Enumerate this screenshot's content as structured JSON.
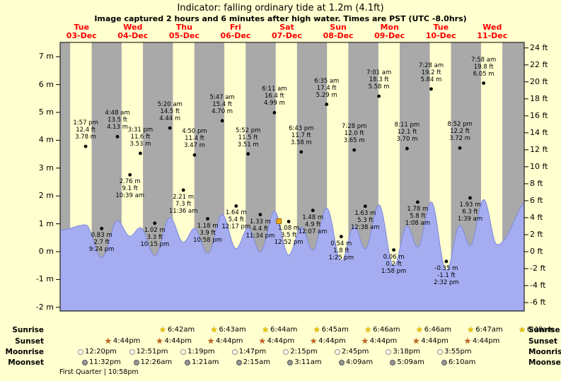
{
  "header": {
    "title": "Indicator: falling  ordinary tide at 1.2m (4.1ft)",
    "subtitle": "Image captured 2 hours and 6 minutes after high water. Times are PST (UTC -8.0hrs)"
  },
  "colors": {
    "background": "#ffffcf",
    "day_band": "#ffffcf",
    "night_band": "#a9a9a9",
    "tide_fill": "#a5adf0",
    "tide_stroke": "#7d88e0",
    "axis": "#000000",
    "day_label": "#ff0000",
    "indicator": "#f5a800",
    "sunrise_star": "#edc500",
    "sunset_star": "#c86820",
    "moonrise_circle": "#fffde6",
    "moonset_circle": "#989898"
  },
  "chart_data": {
    "type": "area",
    "title": "Indicator: falling ordinary tide at 1.2m (4.1ft)",
    "ylabel_left_unit": "m",
    "ylabel_right_unit": "ft",
    "grid": false,
    "days": [
      {
        "dow": "Tue",
        "date": "03-Dec"
      },
      {
        "dow": "Wed",
        "date": "04-Dec"
      },
      {
        "dow": "Thu",
        "date": "05-Dec"
      },
      {
        "dow": "Fri",
        "date": "06-Dec"
      },
      {
        "dow": "Sat",
        "date": "07-Dec"
      },
      {
        "dow": "Sun",
        "date": "08-Dec"
      },
      {
        "dow": "Mon",
        "date": "09-Dec"
      },
      {
        "dow": "Tue",
        "date": "10-Dec"
      },
      {
        "dow": "Wed",
        "date": "11-Dec"
      }
    ],
    "y_left_labels": [
      "7 m",
      "6 m",
      "5 m",
      "4 m",
      "3 m",
      "2 m",
      "1 m",
      "0 m",
      "-1 m",
      "-2 m"
    ],
    "y_right_labels": [
      "24 ft",
      "22 ft",
      "20 ft",
      "18 ft",
      "16 ft",
      "14 ft",
      "12 ft",
      "10 ft",
      "8 ft",
      "6 ft",
      "4 ft",
      "2 ft",
      "0 ft",
      "-2 ft",
      "-4 ft",
      "-6 ft"
    ],
    "tide_events": [
      {
        "date": "03-Dec",
        "type": "high",
        "labels": [
          "1:57 pm",
          "12.4 ft",
          "3.78 m"
        ]
      },
      {
        "date": "03-Dec",
        "type": "low",
        "labels": [
          "0.83 m",
          "2.7 ft",
          "9:24 pm"
        ]
      },
      {
        "date": "04-Dec",
        "type": "high",
        "labels": [
          "4:48 am",
          "13.5 ft",
          "4.13 m"
        ]
      },
      {
        "date": "04-Dec",
        "type": "low",
        "labels": [
          "2.76 m",
          "9.1 ft",
          "10:39 am"
        ]
      },
      {
        "date": "04-Dec",
        "type": "high",
        "labels": [
          "3:31 pm",
          "11.6 ft",
          "3.53 m"
        ]
      },
      {
        "date": "04-Dec",
        "type": "low",
        "labels": [
          "1.02 m",
          "3.3 ft",
          "10:15 pm"
        ]
      },
      {
        "date": "05-Dec",
        "type": "high",
        "labels": [
          "5:20 am",
          "14.5 ft",
          "4.44 m"
        ]
      },
      {
        "date": "05-Dec",
        "type": "low",
        "labels": [
          "2.21 m",
          "7.3 ft",
          "11:36 am"
        ]
      },
      {
        "date": "05-Dec",
        "type": "high",
        "labels": [
          "4:50 pm",
          "11.4 ft",
          "3.47 m"
        ]
      },
      {
        "date": "05-Dec",
        "type": "low",
        "labels": [
          "1.18 m",
          "3.9 ft",
          "10:58 pm"
        ]
      },
      {
        "date": "06-Dec",
        "type": "high",
        "labels": [
          "5:47 am",
          "15.4 ft",
          "4.70 m"
        ]
      },
      {
        "date": "06-Dec",
        "type": "low",
        "labels": [
          "1.64 m",
          "5.4 ft",
          "12:17 pm"
        ]
      },
      {
        "date": "06-Dec",
        "type": "high",
        "labels": [
          "5:52 pm",
          "11.5 ft",
          "3.51 m"
        ]
      },
      {
        "date": "06-Dec",
        "type": "low",
        "labels": [
          "1.33 m",
          "4.4 ft",
          "11:34 pm"
        ]
      },
      {
        "date": "07-Dec",
        "type": "high",
        "labels": [
          "6:11 am",
          "16.4 ft",
          "4.99 m"
        ]
      },
      {
        "date": "07-Dec",
        "type": "low",
        "labels": [
          "1.08 m",
          "3.5 ft",
          "12:52 pm"
        ]
      },
      {
        "date": "07-Dec",
        "type": "high",
        "labels": [
          "6:43 pm",
          "11.7 ft",
          "3.58 m"
        ]
      },
      {
        "date": "08-Dec",
        "type": "low",
        "labels": [
          "1.48 m",
          "4.9 ft",
          "12:07 am"
        ]
      },
      {
        "date": "08-Dec",
        "type": "high",
        "labels": [
          "6:35 am",
          "17.4 ft",
          "5.29 m"
        ]
      },
      {
        "date": "08-Dec",
        "type": "low",
        "labels": [
          "0.54 m",
          "1.8 ft",
          "1:25 pm"
        ]
      },
      {
        "date": "08-Dec",
        "type": "high",
        "labels": [
          "7:28 pm",
          "12.0 ft",
          "3.65 m"
        ]
      },
      {
        "date": "09-Dec",
        "type": "low",
        "labels": [
          "1.63 m",
          "5.3 ft",
          "12:38 am"
        ]
      },
      {
        "date": "09-Dec",
        "type": "high",
        "labels": [
          "7:01 am",
          "18.3 ft",
          "5.58 m"
        ]
      },
      {
        "date": "09-Dec",
        "type": "low",
        "labels": [
          "0.06 m",
          "0.2 ft",
          "1:58 pm"
        ]
      },
      {
        "date": "09-Dec",
        "type": "high",
        "labels": [
          "8:11 pm",
          "12.1 ft",
          "3.70 m"
        ]
      },
      {
        "date": "10-Dec",
        "type": "low",
        "labels": [
          "1.78 m",
          "5.8 ft",
          "1:08 am"
        ]
      },
      {
        "date": "10-Dec",
        "type": "high",
        "labels": [
          "7:28 am",
          "19.2 ft",
          "5.84 m"
        ]
      },
      {
        "date": "10-Dec",
        "type": "low",
        "labels": [
          "-0.35 m",
          "-1.1 ft",
          "2:32 pm"
        ]
      },
      {
        "date": "10-Dec",
        "type": "high",
        "labels": [
          "8:52 pm",
          "12.2 ft",
          "3.72 m"
        ]
      },
      {
        "date": "11-Dec",
        "type": "low",
        "labels": [
          "1.93 m",
          "6.3 ft",
          "1:39 am"
        ]
      },
      {
        "date": "11-Dec",
        "type": "high",
        "labels": [
          "7:58 am",
          "19.8 ft",
          "6.05 m"
        ]
      }
    ],
    "indicator": {
      "state": "falling",
      "height_m": 1.2,
      "height_ft": 4.1
    }
  },
  "almanac": {
    "sunrise": {
      "label": "Sunrise",
      "icon": "sunrise-star-icon",
      "times": [
        "6:42am",
        "6:43am",
        "6:44am",
        "6:45am",
        "6:46am",
        "6:46am",
        "6:47am",
        "6:48am"
      ]
    },
    "sunset": {
      "label": "Sunset",
      "icon": "sunset-star-icon",
      "times": [
        "4:44pm",
        "4:44pm",
        "4:44pm",
        "4:44pm",
        "4:44pm",
        "4:44pm",
        "4:44pm",
        "4:44pm"
      ]
    },
    "moonrise": {
      "label": "Moonrise",
      "icon": "moonrise-circle-icon",
      "times": [
        "12:20pm",
        "12:51pm",
        "1:19pm",
        "1:47pm",
        "2:15pm",
        "2:45pm",
        "3:18pm",
        "3:55pm"
      ]
    },
    "moonset": {
      "label": "Moonset",
      "icon": "moonset-circle-icon",
      "times": [
        "11:32pm",
        "12:26am",
        "1:21am",
        "2:15am",
        "3:11am",
        "4:09am",
        "5:09am",
        "6:10am"
      ]
    },
    "moon_phase": "First Quarter | 10:58pm"
  }
}
